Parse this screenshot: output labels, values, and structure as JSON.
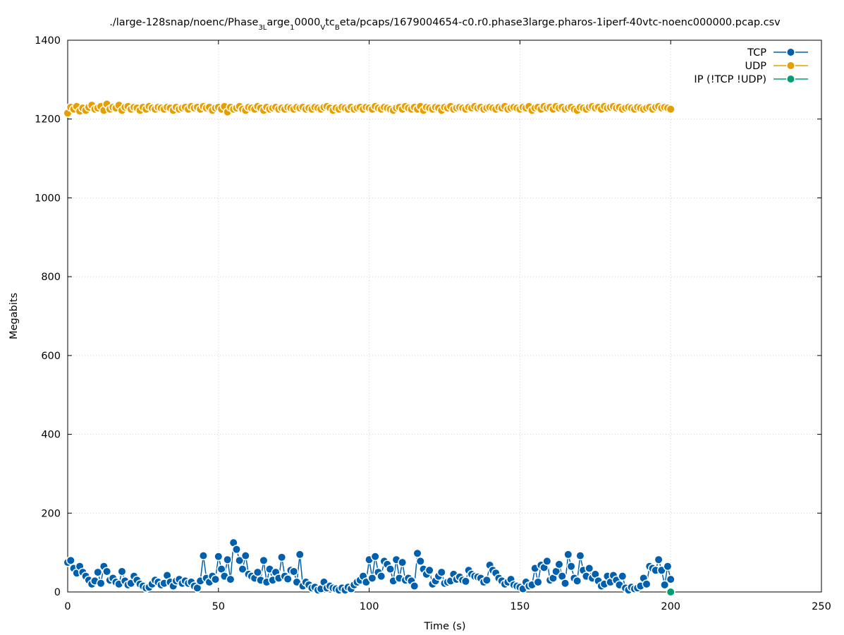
{
  "chart_data": {
    "type": "line",
    "title_parts": [
      {
        "t": "./large-128snap/noenc/Phase",
        "sub": false
      },
      {
        "t": "3L",
        "sub": true
      },
      {
        "t": "arge",
        "sub": false
      },
      {
        "t": "1",
        "sub": true
      },
      {
        "t": "0000",
        "sub": false
      },
      {
        "t": "V",
        "sub": true
      },
      {
        "t": "tc",
        "sub": false
      },
      {
        "t": "B",
        "sub": true
      },
      {
        "t": "eta/pcaps/1679004654-c0.r0.phase3large.pharos-1iperf-40vtc-noenc000000.pcap.csv",
        "sub": false
      }
    ],
    "xlabel": "Time (s)",
    "ylabel": "Megabits",
    "xlim": [
      0,
      250
    ],
    "ylim": [
      0,
      1400
    ],
    "xticks": [
      0,
      50,
      100,
      150,
      200,
      250
    ],
    "yticks": [
      0,
      200,
      400,
      600,
      800,
      1000,
      1200,
      1400
    ],
    "grid": true,
    "legend_position": "top-right",
    "series": [
      {
        "name": "TCP",
        "color": "#0060ad",
        "x": [
          0,
          1,
          2,
          3,
          4,
          5,
          6,
          7,
          8,
          9,
          10,
          11,
          12,
          13,
          14,
          15,
          16,
          17,
          18,
          19,
          20,
          21,
          22,
          23,
          24,
          25,
          26,
          27,
          28,
          29,
          30,
          31,
          32,
          33,
          34,
          35,
          36,
          37,
          38,
          39,
          40,
          41,
          42,
          43,
          44,
          45,
          46,
          47,
          48,
          49,
          50,
          51,
          52,
          53,
          54,
          55,
          56,
          57,
          58,
          59,
          60,
          61,
          62,
          63,
          64,
          65,
          66,
          67,
          68,
          69,
          70,
          71,
          72,
          73,
          74,
          75,
          76,
          77,
          78,
          79,
          80,
          81,
          82,
          83,
          84,
          85,
          86,
          87,
          88,
          89,
          90,
          91,
          92,
          93,
          94,
          95,
          96,
          97,
          98,
          99,
          100,
          101,
          102,
          103,
          104,
          105,
          106,
          107,
          108,
          109,
          110,
          111,
          112,
          113,
          114,
          115,
          116,
          117,
          118,
          119,
          120,
          121,
          122,
          123,
          124,
          125,
          126,
          127,
          128,
          129,
          130,
          131,
          132,
          133,
          134,
          135,
          136,
          137,
          138,
          139,
          140,
          141,
          142,
          143,
          144,
          145,
          146,
          147,
          148,
          149,
          150,
          151,
          152,
          153,
          154,
          155,
          156,
          157,
          158,
          159,
          160,
          161,
          162,
          163,
          164,
          165,
          166,
          167,
          168,
          169,
          170,
          171,
          172,
          173,
          174,
          175,
          176,
          177,
          178,
          179,
          180,
          181,
          182,
          183,
          184,
          185,
          186,
          187,
          188,
          189,
          190,
          191,
          192,
          193,
          194,
          195,
          196,
          197,
          198,
          199,
          200
        ],
        "y": [
          75,
          80,
          60,
          48,
          65,
          50,
          40,
          30,
          20,
          28,
          50,
          22,
          65,
          52,
          30,
          35,
          25,
          20,
          52,
          28,
          18,
          22,
          40,
          30,
          20,
          15,
          10,
          12,
          20,
          30,
          25,
          18,
          22,
          42,
          25,
          15,
          28,
          32,
          22,
          28,
          22,
          25,
          15,
          10,
          28,
          92,
          35,
          25,
          40,
          32,
          90,
          58,
          40,
          82,
          32,
          125,
          108,
          80,
          58,
          92,
          45,
          40,
          35,
          50,
          30,
          80,
          25,
          58,
          30,
          50,
          35,
          88,
          40,
          33,
          55,
          52,
          25,
          95,
          15,
          25,
          18,
          10,
          12,
          5,
          8,
          25,
          10,
          15,
          10,
          8,
          5,
          10,
          5,
          12,
          8,
          18,
          25,
          30,
          40,
          25,
          82,
          35,
          90,
          50,
          40,
          78,
          70,
          58,
          28,
          82,
          35,
          75,
          30,
          35,
          28,
          15,
          98,
          78,
          58,
          45,
          55,
          20,
          28,
          40,
          50,
          22,
          25,
          28,
          45,
          32,
          38,
          30,
          27,
          55,
          45,
          40,
          38,
          35,
          25,
          30,
          68,
          55,
          48,
          35,
          28,
          20,
          25,
          32,
          18,
          15,
          12,
          8,
          25,
          15,
          18,
          60,
          25,
          68,
          62,
          78,
          30,
          35,
          52,
          70,
          40,
          22,
          95,
          65,
          35,
          28,
          92,
          55,
          40,
          60,
          35,
          45,
          28,
          15,
          20,
          40,
          25,
          42,
          30,
          18,
          40,
          10,
          5,
          12,
          8,
          10,
          15,
          35,
          20,
          65,
          60,
          55,
          82,
          55,
          18,
          65,
          32
        ]
      },
      {
        "name": "UDP",
        "color": "#e69f00",
        "x": [
          0,
          1,
          2,
          3,
          4,
          5,
          6,
          7,
          8,
          9,
          10,
          11,
          12,
          13,
          14,
          15,
          16,
          17,
          18,
          19,
          20,
          21,
          22,
          23,
          24,
          25,
          26,
          27,
          28,
          29,
          30,
          31,
          32,
          33,
          34,
          35,
          36,
          37,
          38,
          39,
          40,
          41,
          42,
          43,
          44,
          45,
          46,
          47,
          48,
          49,
          50,
          51,
          52,
          53,
          54,
          55,
          56,
          57,
          58,
          59,
          60,
          61,
          62,
          63,
          64,
          65,
          66,
          67,
          68,
          69,
          70,
          71,
          72,
          73,
          74,
          75,
          76,
          77,
          78,
          79,
          80,
          81,
          82,
          83,
          84,
          85,
          86,
          87,
          88,
          89,
          90,
          91,
          92,
          93,
          94,
          95,
          96,
          97,
          98,
          99,
          100,
          101,
          102,
          103,
          104,
          105,
          106,
          107,
          108,
          109,
          110,
          111,
          112,
          113,
          114,
          115,
          116,
          117,
          118,
          119,
          120,
          121,
          122,
          123,
          124,
          125,
          126,
          127,
          128,
          129,
          130,
          131,
          132,
          133,
          134,
          135,
          136,
          137,
          138,
          139,
          140,
          141,
          142,
          143,
          144,
          145,
          146,
          147,
          148,
          149,
          150,
          151,
          152,
          153,
          154,
          155,
          156,
          157,
          158,
          159,
          160,
          161,
          162,
          163,
          164,
          165,
          166,
          167,
          168,
          169,
          170,
          171,
          172,
          173,
          174,
          175,
          176,
          177,
          178,
          179,
          180,
          181,
          182,
          183,
          184,
          185,
          186,
          187,
          188,
          189,
          190,
          191,
          192,
          193,
          194,
          195,
          196,
          197,
          198,
          199,
          200
        ],
        "y": [
          1215,
          1230,
          1225,
          1232,
          1220,
          1228,
          1222,
          1230,
          1235,
          1225,
          1228,
          1232,
          1222,
          1238,
          1225,
          1230,
          1228,
          1235,
          1222,
          1230,
          1232,
          1225,
          1230,
          1228,
          1222,
          1230,
          1225,
          1232,
          1228,
          1225,
          1230,
          1228,
          1225,
          1230,
          1228,
          1222,
          1230,
          1225,
          1228,
          1230,
          1225,
          1232,
          1228,
          1230,
          1225,
          1232,
          1228,
          1230,
          1222,
          1228,
          1230,
          1225,
          1232,
          1218,
          1230,
          1225,
          1228,
          1232,
          1225,
          1222,
          1230,
          1228,
          1225,
          1232,
          1228,
          1222,
          1230,
          1225,
          1228,
          1230,
          1225,
          1228,
          1225,
          1230,
          1228,
          1225,
          1230,
          1228,
          1230,
          1225,
          1228,
          1225,
          1230,
          1228,
          1225,
          1230,
          1232,
          1228,
          1222,
          1228,
          1225,
          1230,
          1228,
          1225,
          1230,
          1225,
          1228,
          1230,
          1225,
          1230,
          1228,
          1225,
          1232,
          1228,
          1225,
          1230,
          1228,
          1225,
          1222,
          1228,
          1230,
          1225,
          1232,
          1228,
          1225,
          1230,
          1225,
          1232,
          1222,
          1230,
          1228,
          1225,
          1230,
          1228,
          1222,
          1230,
          1228,
          1232,
          1225,
          1228,
          1230,
          1228,
          1225,
          1230,
          1228,
          1232,
          1228,
          1230,
          1225,
          1228,
          1230,
          1228,
          1225,
          1230,
          1228,
          1232,
          1225,
          1228,
          1230,
          1228,
          1225,
          1230,
          1228,
          1232,
          1222,
          1228,
          1230,
          1225,
          1232,
          1228,
          1230,
          1225,
          1232,
          1228,
          1230,
          1225,
          1228,
          1230,
          1225,
          1222,
          1230,
          1228,
          1225,
          1230,
          1232,
          1228,
          1230,
          1225,
          1232,
          1228,
          1230,
          1232,
          1228,
          1230,
          1225,
          1228,
          1230,
          1228,
          1225,
          1230,
          1228,
          1225,
          1228,
          1230,
          1225,
          1230,
          1232,
          1228,
          1230,
          1228,
          1225
        ]
      },
      {
        "name": "IP (!TCP  !UDP)",
        "color": "#009e73",
        "x": [
          200
        ],
        "y": [
          0
        ]
      }
    ]
  }
}
